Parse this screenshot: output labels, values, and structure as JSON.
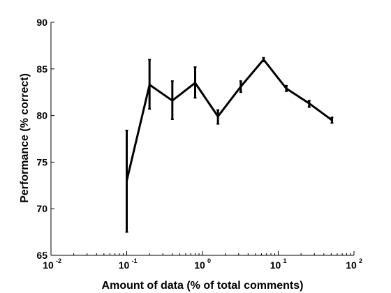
{
  "chart_data": {
    "type": "line",
    "title": "",
    "xlabel": "Amount of data (% of total comments)",
    "ylabel": "Performance (% correct)",
    "xscale": "log",
    "xlim": [
      0.01,
      100
    ],
    "ylim": [
      65,
      90
    ],
    "x_ticks": [
      {
        "base": "10",
        "exp": "-2"
      },
      {
        "base": "10",
        "exp": "-1"
      },
      {
        "base": "10",
        "exp": "0"
      },
      {
        "base": "10",
        "exp": "1"
      },
      {
        "base": "10",
        "exp": "2"
      }
    ],
    "y_ticks": [
      "65",
      "70",
      "75",
      "80",
      "85",
      "90"
    ],
    "grid": false,
    "legend": "none",
    "series": [
      {
        "color": "#000000",
        "points": [
          {
            "x": 0.1,
            "y": 73.0,
            "err_low": 67.5,
            "err_high": 78.4
          },
          {
            "x": 0.2,
            "y": 83.3,
            "err_low": 80.7,
            "err_high": 86.0
          },
          {
            "x": 0.4,
            "y": 81.6,
            "err_low": 79.6,
            "err_high": 83.7
          },
          {
            "x": 0.8,
            "y": 83.5,
            "err_low": 81.9,
            "err_high": 85.2
          },
          {
            "x": 1.6,
            "y": 79.9,
            "err_low": 79.1,
            "err_high": 80.6
          },
          {
            "x": 3.2,
            "y": 83.1,
            "err_low": 82.5,
            "err_high": 83.7
          },
          {
            "x": 6.4,
            "y": 86.0,
            "err_low": 85.8,
            "err_high": 86.2
          },
          {
            "x": 12.8,
            "y": 82.9,
            "err_low": 82.6,
            "err_high": 83.2
          },
          {
            "x": 25.6,
            "y": 81.3,
            "err_low": 80.9,
            "err_high": 81.6
          },
          {
            "x": 51.2,
            "y": 79.5,
            "err_low": 79.2,
            "err_high": 79.8
          }
        ]
      }
    ]
  }
}
